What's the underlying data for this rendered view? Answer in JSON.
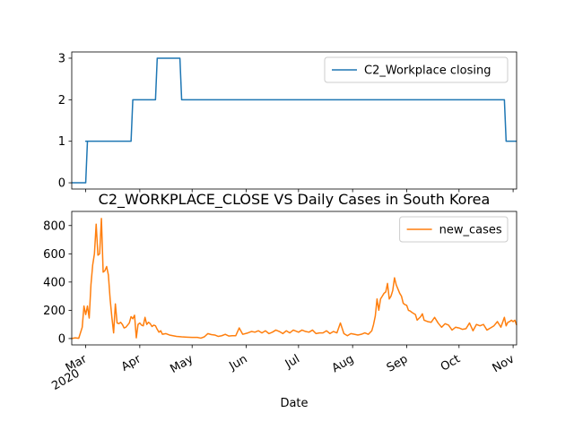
{
  "chart_data": [
    {
      "type": "line",
      "subplot": "top",
      "title": "",
      "xlabel": "",
      "ylabel": "",
      "ylim": [
        -0.15,
        3.15
      ],
      "yticks": [
        0,
        1,
        2,
        3
      ],
      "grid": false,
      "legend_placement": "upper right",
      "series": [
        {
          "name": "C2_Workplace closing",
          "color": "#1f77b4",
          "points": [
            [
              "2020-02-22",
              0
            ],
            [
              "2020-03-01",
              0
            ],
            [
              "2020-03-02",
              1
            ],
            [
              "2020-03-01",
              1
            ],
            [
              "2020-03-27",
              1
            ],
            [
              "2020-03-28",
              2
            ],
            [
              "2020-04-10",
              2
            ],
            [
              "2020-04-11",
              3
            ],
            [
              "2020-04-24",
              3
            ],
            [
              "2020-04-25",
              2
            ],
            [
              "2020-10-27",
              2
            ],
            [
              "2020-10-28",
              1
            ],
            [
              "2020-11-03",
              1
            ]
          ]
        }
      ]
    },
    {
      "type": "line",
      "subplot": "bottom",
      "title": "C2_WORKPLACE_CLOSE VS Daily Cases in South Korea",
      "xlabel": "Date",
      "ylabel": "",
      "ylim": [
        -45,
        900
      ],
      "yticks": [
        0,
        200,
        400,
        600,
        800
      ],
      "grid": false,
      "legend_placement": "upper right",
      "x_ticks": [
        {
          "date": "2020-03-01",
          "label": "Mar",
          "year": "2020"
        },
        {
          "date": "2020-04-01",
          "label": "Apr"
        },
        {
          "date": "2020-05-01",
          "label": "May"
        },
        {
          "date": "2020-06-01",
          "label": "Jun"
        },
        {
          "date": "2020-07-01",
          "label": "Jul"
        },
        {
          "date": "2020-08-01",
          "label": "Aug"
        },
        {
          "date": "2020-09-01",
          "label": "Sep"
        },
        {
          "date": "2020-10-01",
          "label": "Oct"
        },
        {
          "date": "2020-11-01",
          "label": "Nov"
        }
      ],
      "series": [
        {
          "name": "new_cases",
          "color": "#ff7f0e",
          "points": [
            [
              "2020-02-22",
              0
            ],
            [
              "2020-02-24",
              5
            ],
            [
              "2020-02-26",
              2
            ],
            [
              "2020-02-28",
              80
            ],
            [
              "2020-02-29",
              230
            ],
            [
              "2020-03-01",
              170
            ],
            [
              "2020-03-02",
              230
            ],
            [
              "2020-03-03",
              145
            ],
            [
              "2020-03-04",
              380
            ],
            [
              "2020-03-05",
              520
            ],
            [
              "2020-03-06",
              600
            ],
            [
              "2020-03-07",
              810
            ],
            [
              "2020-03-08",
              590
            ],
            [
              "2020-03-09",
              600
            ],
            [
              "2020-03-10",
              850
            ],
            [
              "2020-03-11",
              470
            ],
            [
              "2020-03-12",
              480
            ],
            [
              "2020-03-13",
              510
            ],
            [
              "2020-03-14",
              450
            ],
            [
              "2020-03-15",
              280
            ],
            [
              "2020-03-16",
              150
            ],
            [
              "2020-03-17",
              40
            ],
            [
              "2020-03-18",
              245
            ],
            [
              "2020-03-19",
              110
            ],
            [
              "2020-03-20",
              105
            ],
            [
              "2020-03-21",
              115
            ],
            [
              "2020-03-22",
              100
            ],
            [
              "2020-03-23",
              75
            ],
            [
              "2020-03-24",
              80
            ],
            [
              "2020-03-25",
              95
            ],
            [
              "2020-03-26",
              110
            ],
            [
              "2020-03-27",
              155
            ],
            [
              "2020-03-28",
              140
            ],
            [
              "2020-03-29",
              165
            ],
            [
              "2020-03-30",
              5
            ],
            [
              "2020-03-31",
              100
            ],
            [
              "2020-04-01",
              110
            ],
            [
              "2020-04-02",
              95
            ],
            [
              "2020-04-03",
              90
            ],
            [
              "2020-04-04",
              150
            ],
            [
              "2020-04-05",
              100
            ],
            [
              "2020-04-06",
              115
            ],
            [
              "2020-04-07",
              105
            ],
            [
              "2020-04-08",
              85
            ],
            [
              "2020-04-09",
              95
            ],
            [
              "2020-04-10",
              90
            ],
            [
              "2020-04-11",
              65
            ],
            [
              "2020-04-12",
              45
            ],
            [
              "2020-04-13",
              55
            ],
            [
              "2020-04-14",
              30
            ],
            [
              "2020-04-16",
              35
            ],
            [
              "2020-04-18",
              25
            ],
            [
              "2020-04-20",
              20
            ],
            [
              "2020-04-22",
              15
            ],
            [
              "2020-04-25",
              12
            ],
            [
              "2020-04-28",
              10
            ],
            [
              "2020-05-01",
              8
            ],
            [
              "2020-05-04",
              8
            ],
            [
              "2020-05-06",
              3
            ],
            [
              "2020-05-08",
              12
            ],
            [
              "2020-05-10",
              35
            ],
            [
              "2020-05-12",
              28
            ],
            [
              "2020-05-14",
              25
            ],
            [
              "2020-05-16",
              15
            ],
            [
              "2020-05-18",
              20
            ],
            [
              "2020-05-20",
              30
            ],
            [
              "2020-05-22",
              18
            ],
            [
              "2020-05-24",
              20
            ],
            [
              "2020-05-26",
              20
            ],
            [
              "2020-05-28",
              75
            ],
            [
              "2020-05-30",
              30
            ],
            [
              "2020-06-02",
              40
            ],
            [
              "2020-06-04",
              50
            ],
            [
              "2020-06-06",
              45
            ],
            [
              "2020-06-08",
              55
            ],
            [
              "2020-06-10",
              40
            ],
            [
              "2020-06-12",
              55
            ],
            [
              "2020-06-14",
              35
            ],
            [
              "2020-06-16",
              45
            ],
            [
              "2020-06-18",
              60
            ],
            [
              "2020-06-20",
              50
            ],
            [
              "2020-06-22",
              35
            ],
            [
              "2020-06-24",
              55
            ],
            [
              "2020-06-26",
              40
            ],
            [
              "2020-06-28",
              60
            ],
            [
              "2020-07-01",
              45
            ],
            [
              "2020-07-03",
              60
            ],
            [
              "2020-07-05",
              50
            ],
            [
              "2020-07-07",
              45
            ],
            [
              "2020-07-09",
              60
            ],
            [
              "2020-07-11",
              35
            ],
            [
              "2020-07-13",
              40
            ],
            [
              "2020-07-15",
              40
            ],
            [
              "2020-07-17",
              55
            ],
            [
              "2020-07-19",
              35
            ],
            [
              "2020-07-21",
              50
            ],
            [
              "2020-07-23",
              40
            ],
            [
              "2020-07-25",
              110
            ],
            [
              "2020-07-27",
              35
            ],
            [
              "2020-07-29",
              20
            ],
            [
              "2020-07-31",
              35
            ],
            [
              "2020-08-02",
              30
            ],
            [
              "2020-08-04",
              25
            ],
            [
              "2020-08-06",
              30
            ],
            [
              "2020-08-08",
              40
            ],
            [
              "2020-08-10",
              30
            ],
            [
              "2020-08-12",
              55
            ],
            [
              "2020-08-13",
              100
            ],
            [
              "2020-08-14",
              160
            ],
            [
              "2020-08-15",
              280
            ],
            [
              "2020-08-16",
              200
            ],
            [
              "2020-08-17",
              280
            ],
            [
              "2020-08-18",
              300
            ],
            [
              "2020-08-19",
              320
            ],
            [
              "2020-08-20",
              330
            ],
            [
              "2020-08-21",
              390
            ],
            [
              "2020-08-22",
              280
            ],
            [
              "2020-08-23",
              300
            ],
            [
              "2020-08-24",
              340
            ],
            [
              "2020-08-25",
              430
            ],
            [
              "2020-08-26",
              380
            ],
            [
              "2020-08-27",
              350
            ],
            [
              "2020-08-28",
              320
            ],
            [
              "2020-08-29",
              300
            ],
            [
              "2020-08-30",
              250
            ],
            [
              "2020-08-31",
              240
            ],
            [
              "2020-09-01",
              235
            ],
            [
              "2020-09-02",
              200
            ],
            [
              "2020-09-03",
              195
            ],
            [
              "2020-09-04",
              185
            ],
            [
              "2020-09-06",
              170
            ],
            [
              "2020-09-07",
              130
            ],
            [
              "2020-09-09",
              155
            ],
            [
              "2020-09-10",
              175
            ],
            [
              "2020-09-11",
              130
            ],
            [
              "2020-09-13",
              120
            ],
            [
              "2020-09-15",
              115
            ],
            [
              "2020-09-17",
              150
            ],
            [
              "2020-09-19",
              110
            ],
            [
              "2020-09-21",
              80
            ],
            [
              "2020-09-23",
              105
            ],
            [
              "2020-09-25",
              95
            ],
            [
              "2020-09-27",
              60
            ],
            [
              "2020-09-29",
              80
            ],
            [
              "2020-10-01",
              75
            ],
            [
              "2020-10-03",
              65
            ],
            [
              "2020-10-05",
              70
            ],
            [
              "2020-10-07",
              110
            ],
            [
              "2020-10-09",
              55
            ],
            [
              "2020-10-11",
              100
            ],
            [
              "2020-10-13",
              90
            ],
            [
              "2020-10-15",
              100
            ],
            [
              "2020-10-17",
              60
            ],
            [
              "2020-10-19",
              75
            ],
            [
              "2020-10-21",
              90
            ],
            [
              "2020-10-23",
              120
            ],
            [
              "2020-10-25",
              80
            ],
            [
              "2020-10-27",
              150
            ],
            [
              "2020-10-28",
              90
            ],
            [
              "2020-10-29",
              115
            ],
            [
              "2020-10-30",
              120
            ],
            [
              "2020-10-31",
              130
            ],
            [
              "2020-11-01",
              120
            ],
            [
              "2020-11-02",
              130
            ],
            [
              "2020-11-03",
              95
            ]
          ]
        }
      ]
    }
  ]
}
